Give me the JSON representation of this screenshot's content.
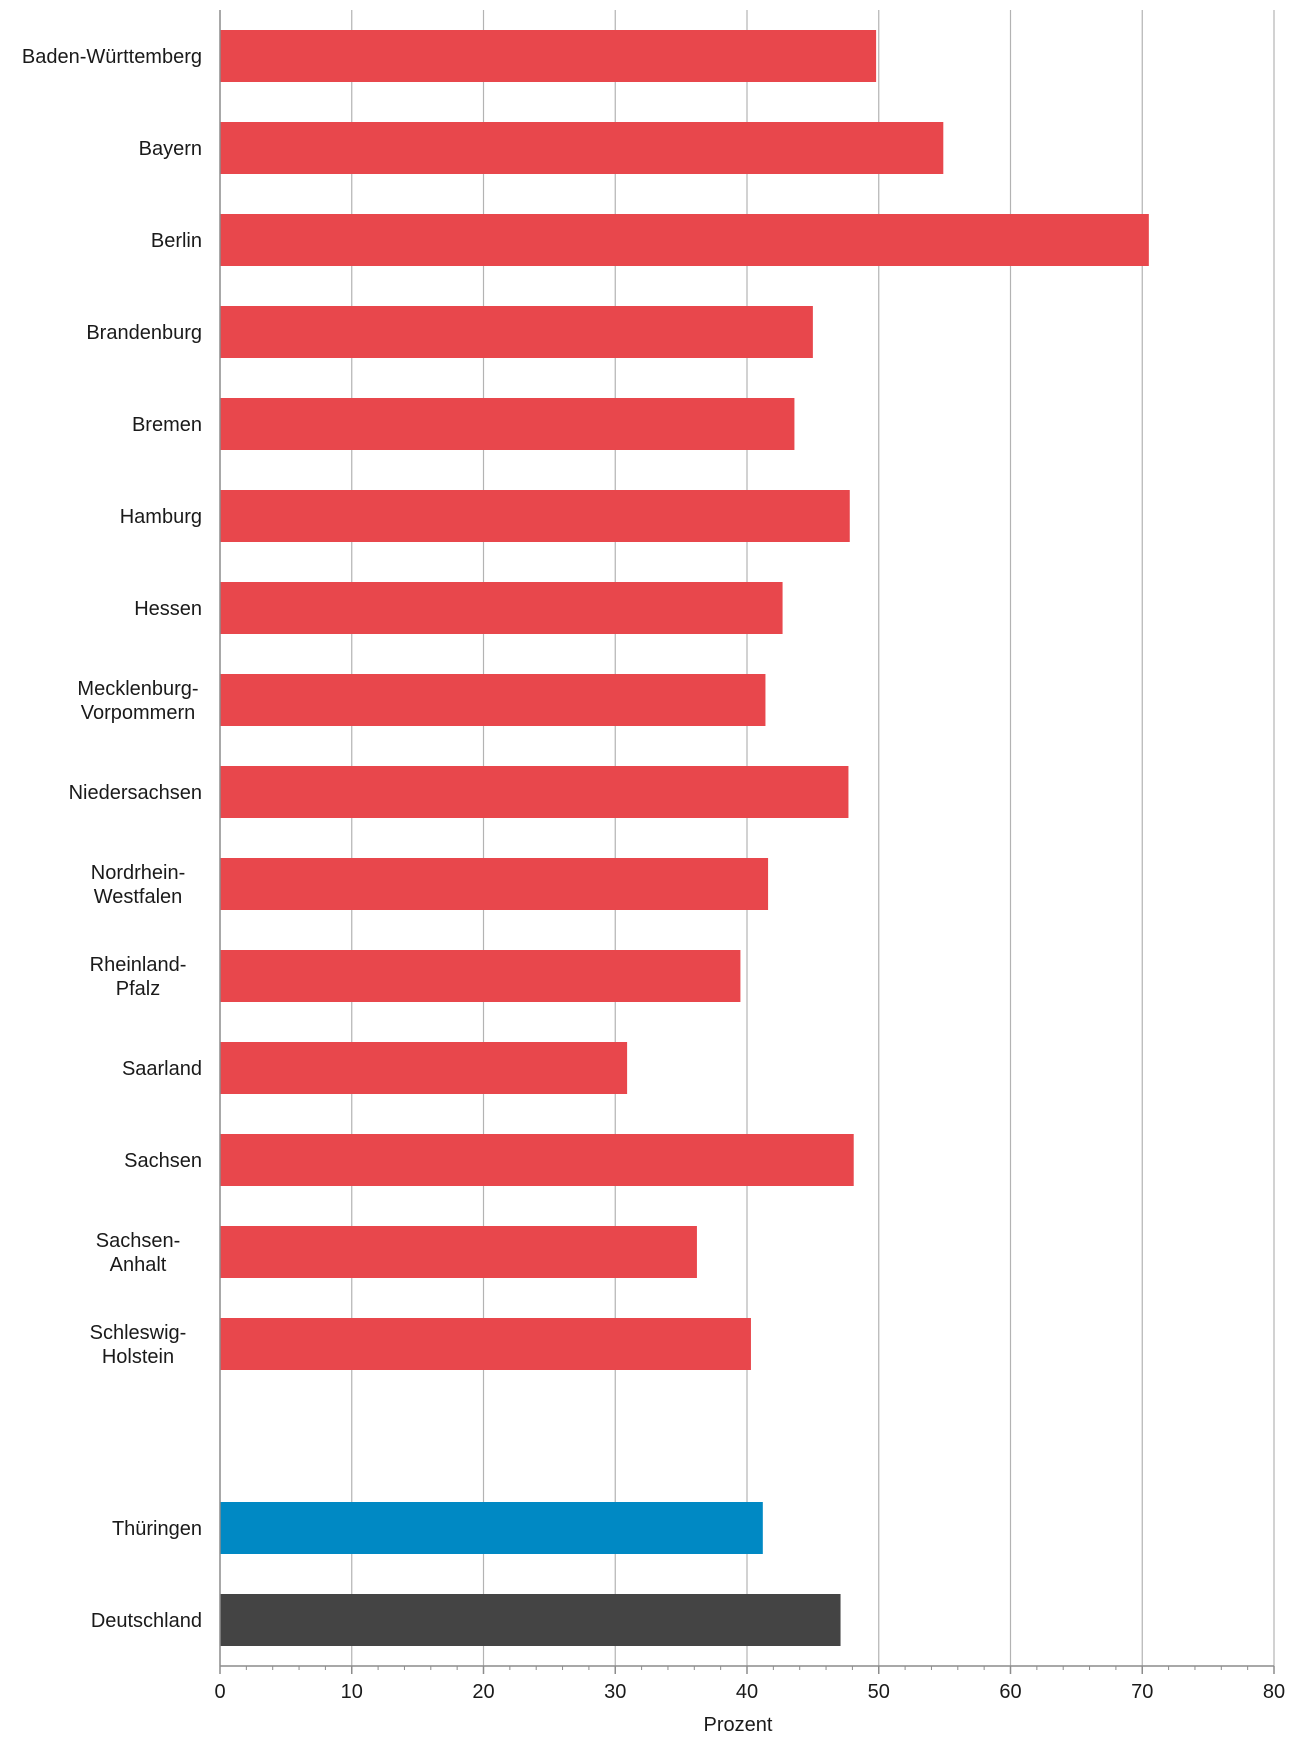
{
  "chart_data": {
    "type": "bar",
    "orientation": "horizontal",
    "title": "",
    "xlabel": "Prozent",
    "ylabel": "",
    "xlim": [
      0,
      80
    ],
    "x_ticks": [
      0,
      10,
      20,
      30,
      40,
      50,
      60,
      70,
      80
    ],
    "grid": "vertical",
    "legend": "none",
    "categories": [
      "Baden-Württemberg",
      "Bayern",
      "Berlin",
      "Brandenburg",
      "Bremen",
      "Hamburg",
      "Hessen",
      "Mecklenburg-Vorpommern",
      "Niedersachsen",
      "Nordrhein-Westfalen",
      "Rheinland-Pfalz",
      "Saarland",
      "Sachsen",
      "Sachsen-Anhalt",
      "Schleswig-Holstein",
      "",
      "Thüringen",
      "Deutschland"
    ],
    "category_label_lines": [
      [
        "Baden-Württemberg"
      ],
      [
        "Bayern"
      ],
      [
        "Berlin"
      ],
      [
        "Brandenburg"
      ],
      [
        "Bremen"
      ],
      [
        "Hamburg"
      ],
      [
        "Hessen"
      ],
      [
        "Mecklenburg-",
        "Vorpommern"
      ],
      [
        "Niedersachsen"
      ],
      [
        "Nordrhein-",
        "Westfalen"
      ],
      [
        "Rheinland-",
        "Pfalz"
      ],
      [
        "Saarland"
      ],
      [
        "Sachsen"
      ],
      [
        "Sachsen-",
        "Anhalt"
      ],
      [
        "Schleswig-",
        "Holstein"
      ],
      [],
      [
        "Thüringen"
      ],
      [
        "Deutschland"
      ]
    ],
    "values": [
      49.8,
      54.9,
      70.5,
      45.0,
      43.6,
      47.8,
      42.7,
      41.4,
      47.7,
      41.6,
      39.5,
      30.9,
      48.1,
      36.2,
      40.3,
      null,
      41.2,
      47.1
    ],
    "bar_colors": [
      "#e8474c",
      "#e8474c",
      "#e8474c",
      "#e8474c",
      "#e8474c",
      "#e8474c",
      "#e8474c",
      "#e8474c",
      "#e8474c",
      "#e8474c",
      "#e8474c",
      "#e8474c",
      "#e8474c",
      "#e8474c",
      "#e8474c",
      "",
      "#0089c4",
      "#444444"
    ],
    "colors": {
      "states": "#e8474c",
      "thueringen": "#0089c4",
      "deutschland": "#444444",
      "grid": "#b3b3b3",
      "axis": "#8c8c8c"
    }
  }
}
